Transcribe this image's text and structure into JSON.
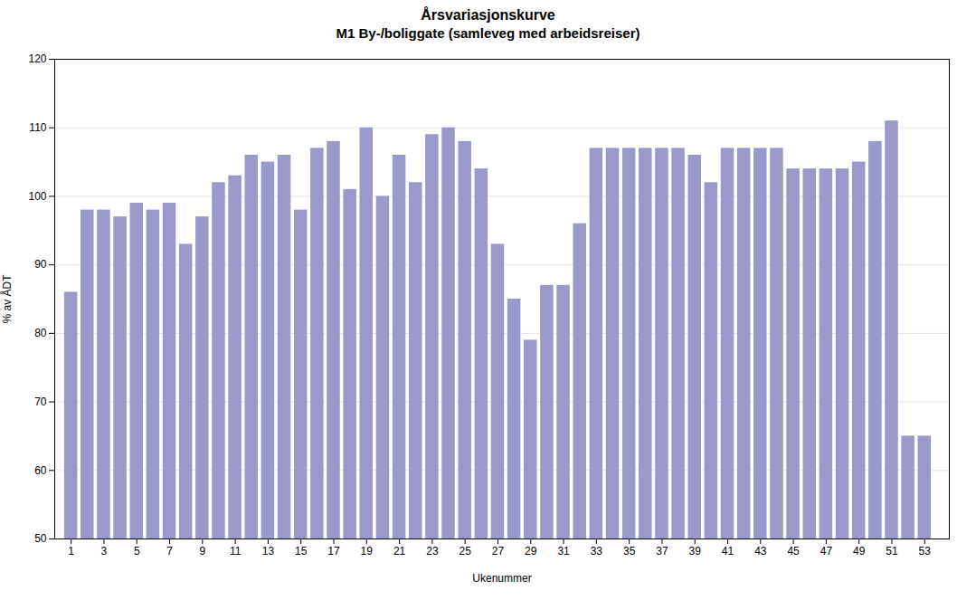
{
  "chart_data": {
    "type": "bar",
    "title": "Årsvariasjonskurve",
    "subtitle": "M1 By-/boliggate (samleveg med arbeidsreiser)",
    "x_label": "Ukenummer",
    "y_label": "% av ÅDT",
    "x": [
      1,
      2,
      3,
      4,
      5,
      6,
      7,
      8,
      9,
      10,
      11,
      12,
      13,
      14,
      15,
      16,
      17,
      18,
      19,
      20,
      21,
      22,
      23,
      24,
      25,
      26,
      27,
      28,
      29,
      30,
      31,
      32,
      33,
      34,
      35,
      36,
      37,
      38,
      39,
      40,
      41,
      42,
      43,
      44,
      45,
      46,
      47,
      48,
      49,
      50,
      51,
      52,
      53
    ],
    "values": [
      86,
      98,
      98,
      97,
      99,
      98,
      99,
      93,
      97,
      102,
      103,
      106,
      105,
      106,
      98,
      107,
      108,
      101,
      110,
      100,
      106,
      102,
      109,
      110,
      108,
      104,
      93,
      85,
      79,
      87,
      87,
      96,
      107,
      107,
      107,
      107,
      107,
      107,
      106,
      102,
      107,
      107,
      107,
      107,
      104,
      104,
      104,
      104,
      105,
      108,
      111,
      65,
      65
    ],
    "color": "#9999cc",
    "xlim": [
      0.0,
      54.5
    ],
    "xticks": [
      1,
      3,
      5,
      7,
      9,
      11,
      13,
      15,
      17,
      19,
      21,
      23,
      25,
      27,
      29,
      31,
      33,
      35,
      37,
      39,
      41,
      43,
      45,
      47,
      49,
      51,
      53
    ],
    "ylim": [
      50,
      120
    ],
    "yticks": [
      50,
      60,
      70,
      80,
      90,
      100,
      110,
      120
    ],
    "grid": "y"
  }
}
